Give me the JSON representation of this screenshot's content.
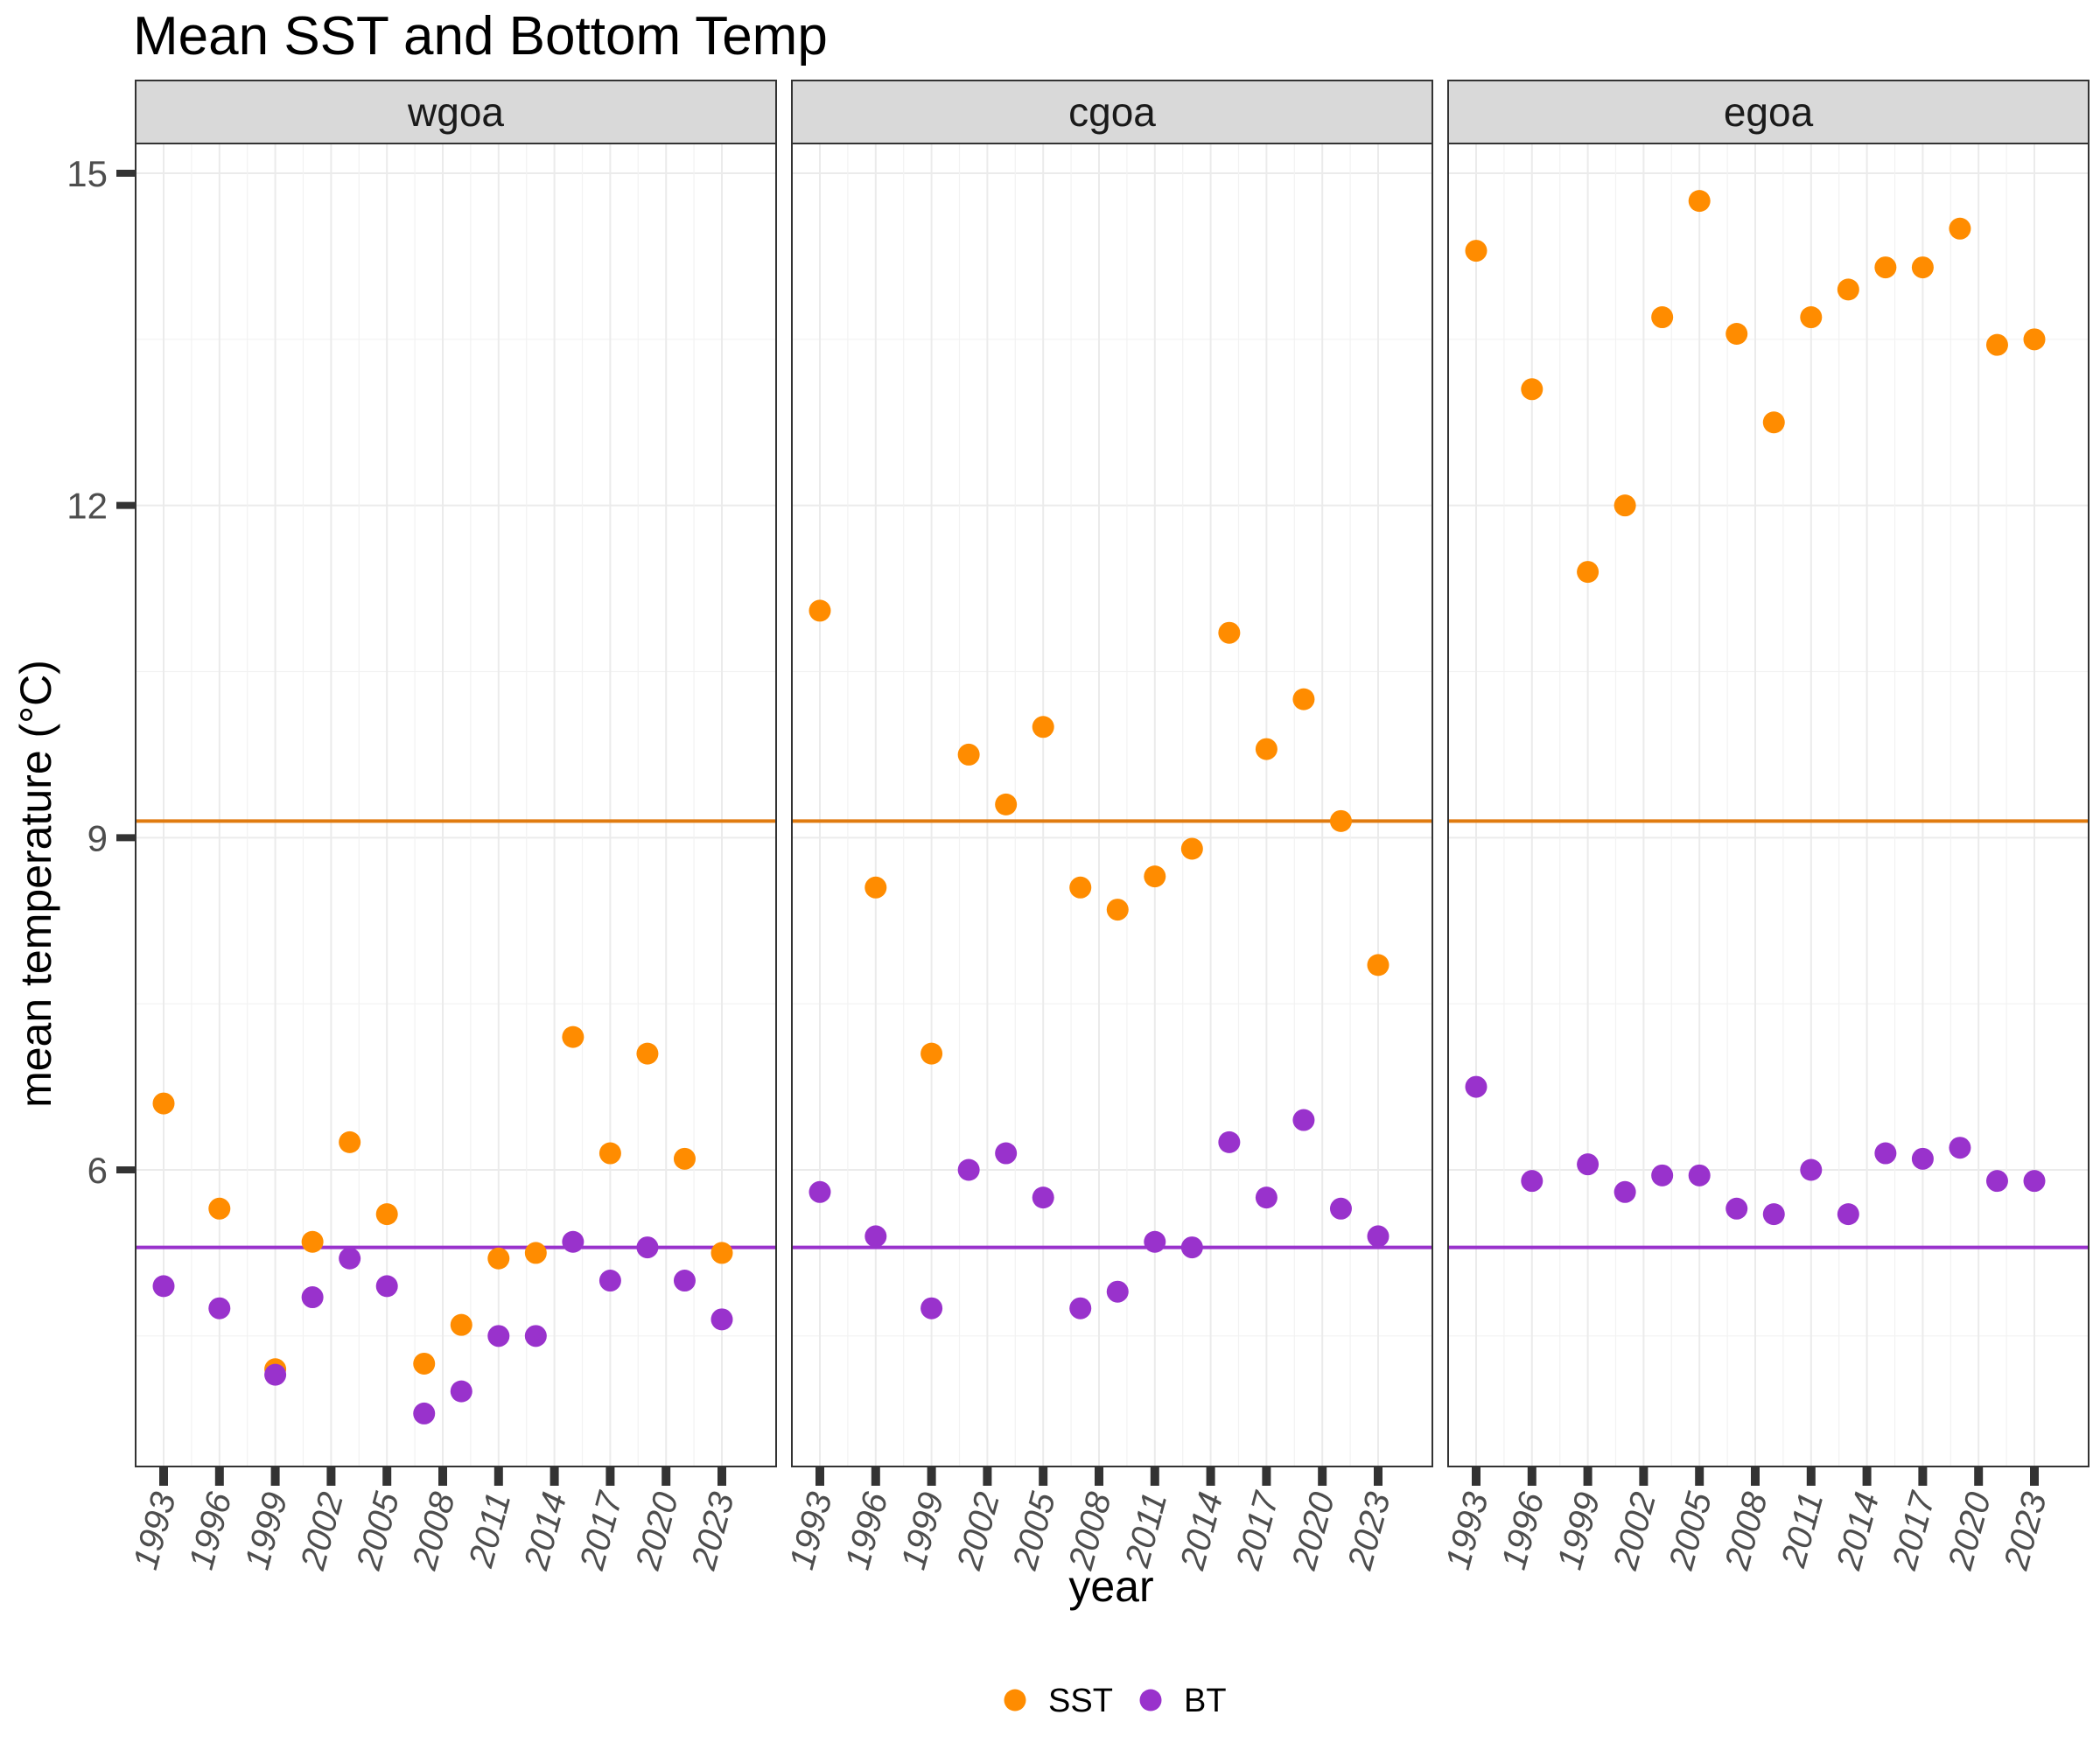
{
  "chart_data": {
    "type": "scatter",
    "title": "Mean SST and Bottom Temp",
    "xlabel": "year",
    "ylabel": "mean temperature (°C)",
    "ylim": [
      3.5,
      15.3
    ],
    "xlim": [
      1992,
      2024
    ],
    "y_ticks": [
      "6",
      "9",
      "12",
      "15"
    ],
    "x_ticks": [
      "1993",
      "1996",
      "1999",
      "2002",
      "2005",
      "2008",
      "2011",
      "2014",
      "2017",
      "2020",
      "2023"
    ],
    "grid": true,
    "legend_position": "bottom",
    "colors": {
      "SST": "#FF8C00",
      "BT": "#9932CC",
      "SST_line": "#E07B10",
      "BT_line": "#9932CC"
    },
    "reference_lines": {
      "SST": 9.15,
      "BT": 5.3
    },
    "legend": [
      {
        "name": "SST",
        "color": "#FF8C00"
      },
      {
        "name": "BT",
        "color": "#9932CC"
      }
    ],
    "panels": [
      {
        "name": "wgoa",
        "series": [
          {
            "name": "SST",
            "points": [
              [
                1993,
                6.6
              ],
              [
                1996,
                5.65
              ],
              [
                1999,
                4.2
              ],
              [
                2001,
                5.35
              ],
              [
                2003,
                6.25
              ],
              [
                2005,
                5.6
              ],
              [
                2007,
                4.25
              ],
              [
                2009,
                4.6
              ],
              [
                2011,
                5.2
              ],
              [
                2013,
                5.25
              ],
              [
                2015,
                7.2
              ],
              [
                2019,
                7.05
              ],
              [
                2017,
                6.15
              ],
              [
                2021,
                6.1
              ],
              [
                2023,
                5.25
              ]
            ]
          },
          {
            "name": "BT",
            "points": [
              [
                1993,
                4.95
              ],
              [
                1996,
                4.75
              ],
              [
                1999,
                4.15
              ],
              [
                2001,
                4.85
              ],
              [
                2003,
                5.2
              ],
              [
                2005,
                4.95
              ],
              [
                2007,
                3.8
              ],
              [
                2009,
                4.0
              ],
              [
                2011,
                4.5
              ],
              [
                2013,
                4.5
              ],
              [
                2015,
                5.35
              ],
              [
                2017,
                5.0
              ],
              [
                2019,
                5.3
              ],
              [
                2021,
                5.0
              ],
              [
                2023,
                4.65
              ]
            ]
          }
        ]
      },
      {
        "name": "cgoa",
        "series": [
          {
            "name": "SST",
            "points": [
              [
                1993,
                11.05
              ],
              [
                1996,
                8.55
              ],
              [
                1999,
                7.05
              ],
              [
                2001,
                9.75
              ],
              [
                2003,
                9.3
              ],
              [
                2005,
                10.0
              ],
              [
                2007,
                8.55
              ],
              [
                2009,
                8.35
              ],
              [
                2011,
                8.65
              ],
              [
                2013,
                8.9
              ],
              [
                2015,
                10.85
              ],
              [
                2017,
                9.8
              ],
              [
                2019,
                10.25
              ],
              [
                2021,
                9.15
              ],
              [
                2023,
                7.85
              ]
            ]
          },
          {
            "name": "BT",
            "points": [
              [
                1993,
                5.8
              ],
              [
                1996,
                5.4
              ],
              [
                1999,
                4.75
              ],
              [
                2001,
                6.0
              ],
              [
                2003,
                6.15
              ],
              [
                2005,
                5.75
              ],
              [
                2007,
                4.75
              ],
              [
                2009,
                4.9
              ],
              [
                2011,
                5.35
              ],
              [
                2013,
                5.3
              ],
              [
                2015,
                6.25
              ],
              [
                2017,
                5.75
              ],
              [
                2019,
                6.45
              ],
              [
                2021,
                5.65
              ],
              [
                2023,
                5.4
              ]
            ]
          }
        ]
      },
      {
        "name": "egoa",
        "series": [
          {
            "name": "SST",
            "points": [
              [
                1993,
                14.3
              ],
              [
                1996,
                13.05
              ],
              [
                1999,
                11.4
              ],
              [
                2001,
                12.0
              ],
              [
                2003,
                13.7
              ],
              [
                2005,
                14.75
              ],
              [
                2007,
                13.55
              ],
              [
                2009,
                12.75
              ],
              [
                2011,
                13.7
              ],
              [
                2013,
                13.95
              ],
              [
                2015,
                14.15
              ],
              [
                2017,
                14.15
              ],
              [
                2019,
                14.5
              ],
              [
                2021,
                13.45
              ],
              [
                2023,
                13.5
              ]
            ]
          },
          {
            "name": "BT",
            "points": [
              [
                1993,
                6.75
              ],
              [
                1996,
                5.9
              ],
              [
                1999,
                6.05
              ],
              [
                2001,
                5.8
              ],
              [
                2003,
                5.95
              ],
              [
                2005,
                5.95
              ],
              [
                2007,
                5.65
              ],
              [
                2009,
                5.6
              ],
              [
                2011,
                6.0
              ],
              [
                2013,
                5.6
              ],
              [
                2015,
                6.15
              ],
              [
                2017,
                6.1
              ],
              [
                2019,
                6.2
              ],
              [
                2021,
                5.9
              ],
              [
                2023,
                5.9
              ]
            ]
          }
        ]
      }
    ]
  }
}
